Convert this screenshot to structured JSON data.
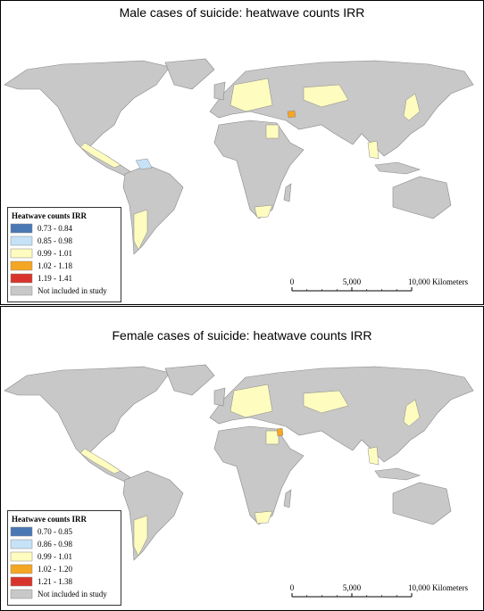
{
  "panels": [
    {
      "title": "Male cases of suicide: heatwave counts IRR",
      "legend": {
        "title": "Heatwave counts IRR",
        "items": [
          {
            "label": "0.73 - 0.84",
            "color": "#4a78b5"
          },
          {
            "label": "0.85 - 0.98",
            "color": "#c6e2f7"
          },
          {
            "label": "0.99 - 1.01",
            "color": "#fefcbf"
          },
          {
            "label": "1.02 - 1.18",
            "color": "#f5a623"
          },
          {
            "label": "1.19 - 1.41",
            "color": "#d9342b"
          },
          {
            "label": "Not included in study",
            "color": "#c8c8c8"
          }
        ]
      },
      "scale": {
        "labels": [
          "0",
          "5,000",
          "10,000 Kilometers"
        ]
      }
    },
    {
      "title": "Female cases of suicide: heatwave counts IRR",
      "legend": {
        "title": "Heatwave counts IRR",
        "items": [
          {
            "label": "0.70 - 0.85",
            "color": "#4a78b5"
          },
          {
            "label": "0.86 - 0.98",
            "color": "#c6e2f7"
          },
          {
            "label": "0.99 - 1.01",
            "color": "#fefcbf"
          },
          {
            "label": "1.02 - 1.20",
            "color": "#f5a623"
          },
          {
            "label": "1.21 - 1.38",
            "color": "#d9342b"
          },
          {
            "label": "Not included in study",
            "color": "#c8c8c8"
          }
        ]
      },
      "scale": {
        "labels": [
          "0",
          "5,000",
          "10,000 Kilometers"
        ]
      }
    }
  ]
}
